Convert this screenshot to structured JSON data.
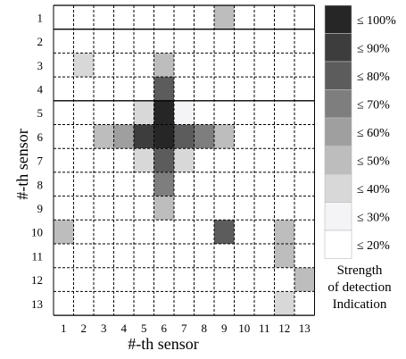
{
  "chart_data": {
    "type": "heatmap",
    "xlabel": "#-th sensor",
    "ylabel": "#-th sensor",
    "x_ticks": [
      "1",
      "2",
      "3",
      "4",
      "5",
      "6",
      "7",
      "8",
      "9",
      "10",
      "11",
      "12",
      "13"
    ],
    "y_ticks": [
      "1",
      "2",
      "3",
      "4",
      "5",
      "6",
      "7",
      "8",
      "9",
      "10",
      "11",
      "12",
      "13"
    ],
    "grid": true,
    "legend_position": "right",
    "legend": {
      "title": [
        "Strength",
        "of detection",
        "Indication"
      ],
      "levels": [
        {
          "label": "≤ 100%",
          "color": "#262626"
        },
        {
          "label": "≤ 90%",
          "color": "#3d3d3d"
        },
        {
          "label": "≤ 80%",
          "color": "#5c5c5c"
        },
        {
          "label": "≤ 70%",
          "color": "#7e7e7e"
        },
        {
          "label": "≤ 60%",
          "color": "#9f9f9f"
        },
        {
          "label": "≤ 50%",
          "color": "#bdbdbd"
        },
        {
          "label": "≤ 40%",
          "color": "#d8d8d8"
        },
        {
          "label": "≤ 30%",
          "color": "#f4f4f6"
        },
        {
          "label": "≤ 20%",
          "color": "#ffffff"
        }
      ]
    },
    "cells": [
      {
        "row": 1,
        "col": 9,
        "value": 50
      },
      {
        "row": 3,
        "col": 2,
        "value": 40
      },
      {
        "row": 3,
        "col": 6,
        "value": 50
      },
      {
        "row": 4,
        "col": 6,
        "value": 80
      },
      {
        "row": 5,
        "col": 5,
        "value": 40
      },
      {
        "row": 5,
        "col": 6,
        "value": 100
      },
      {
        "row": 5,
        "col": 7,
        "value": 30
      },
      {
        "row": 6,
        "col": 3,
        "value": 50
      },
      {
        "row": 6,
        "col": 4,
        "value": 60
      },
      {
        "row": 6,
        "col": 5,
        "value": 90
      },
      {
        "row": 6,
        "col": 6,
        "value": 100
      },
      {
        "row": 6,
        "col": 7,
        "value": 80
      },
      {
        "row": 6,
        "col": 8,
        "value": 70
      },
      {
        "row": 6,
        "col": 9,
        "value": 50
      },
      {
        "row": 7,
        "col": 5,
        "value": 40
      },
      {
        "row": 7,
        "col": 6,
        "value": 80
      },
      {
        "row": 7,
        "col": 7,
        "value": 40
      },
      {
        "row": 8,
        "col": 6,
        "value": 70
      },
      {
        "row": 9,
        "col": 6,
        "value": 50
      },
      {
        "row": 10,
        "col": 1,
        "value": 50
      },
      {
        "row": 10,
        "col": 9,
        "value": 80
      },
      {
        "row": 10,
        "col": 12,
        "value": 50
      },
      {
        "row": 11,
        "col": 12,
        "value": 50
      },
      {
        "row": 12,
        "col": 13,
        "value": 50
      },
      {
        "row": 13,
        "col": 12,
        "value": 40
      }
    ]
  }
}
